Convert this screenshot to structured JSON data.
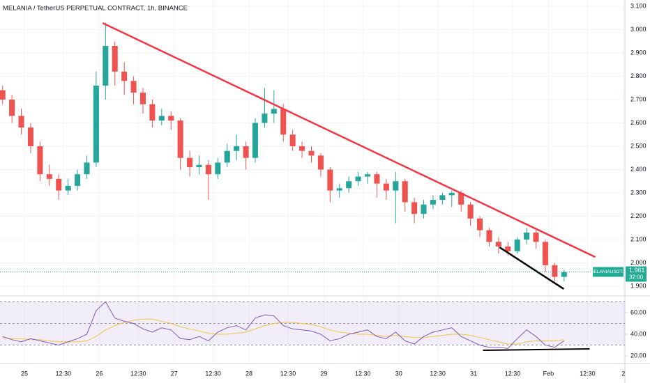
{
  "chart_data": {
    "type": "candlestick",
    "title": "MELANIA / TetherUS PERPETUAL CONTRACT, 1h, BINANCE",
    "up_color": "#26a69a",
    "down_color": "#ef5350",
    "x": [
      -7,
      -4,
      -1,
      2,
      5,
      8,
      11,
      14,
      17,
      20,
      23,
      26,
      29,
      32,
      35,
      38,
      41,
      44,
      47,
      50,
      53,
      56,
      59,
      62,
      65,
      68,
      71,
      74,
      77,
      80,
      83,
      86,
      89,
      92,
      95,
      98,
      101,
      104,
      107,
      110,
      113,
      116,
      119,
      122,
      125,
      128,
      131,
      134,
      137,
      140,
      143,
      146,
      149,
      152,
      155,
      158,
      161,
      164,
      167,
      170,
      173
    ],
    "ohlc": [
      [
        2.74,
        2.76,
        2.68,
        2.7
      ],
      [
        2.7,
        2.72,
        2.6,
        2.63
      ],
      [
        2.63,
        2.66,
        2.55,
        2.58
      ],
      [
        2.58,
        2.6,
        2.47,
        2.5
      ],
      [
        2.5,
        2.52,
        2.35,
        2.38
      ],
      [
        2.38,
        2.42,
        2.33,
        2.36
      ],
      [
        2.36,
        2.38,
        2.27,
        2.31
      ],
      [
        2.31,
        2.36,
        2.29,
        2.33
      ],
      [
        2.33,
        2.4,
        2.31,
        2.38
      ],
      [
        2.38,
        2.46,
        2.36,
        2.43
      ],
      [
        2.43,
        2.82,
        2.41,
        2.76
      ],
      [
        2.76,
        3.03,
        2.7,
        2.93
      ],
      [
        2.93,
        2.95,
        2.76,
        2.82
      ],
      [
        2.82,
        2.86,
        2.72,
        2.78
      ],
      [
        2.78,
        2.8,
        2.68,
        2.73
      ],
      [
        2.73,
        2.75,
        2.64,
        2.68
      ],
      [
        2.68,
        2.7,
        2.58,
        2.61
      ],
      [
        2.61,
        2.66,
        2.59,
        2.63
      ],
      [
        2.63,
        2.65,
        2.57,
        2.61
      ],
      [
        2.61,
        2.62,
        2.4,
        2.45
      ],
      [
        2.45,
        2.48,
        2.37,
        2.41
      ],
      [
        2.41,
        2.46,
        2.38,
        2.42
      ],
      [
        2.42,
        2.44,
        2.27,
        2.38
      ],
      [
        2.38,
        2.45,
        2.36,
        2.43
      ],
      [
        2.43,
        2.51,
        2.41,
        2.48
      ],
      [
        2.48,
        2.55,
        2.44,
        2.5
      ],
      [
        2.5,
        2.52,
        2.4,
        2.45
      ],
      [
        2.45,
        2.62,
        2.43,
        2.6
      ],
      [
        2.6,
        2.75,
        2.58,
        2.64
      ],
      [
        2.64,
        2.74,
        2.6,
        2.66
      ],
      [
        2.66,
        2.68,
        2.52,
        2.55
      ],
      [
        2.55,
        2.57,
        2.48,
        2.5
      ],
      [
        2.5,
        2.52,
        2.45,
        2.48
      ],
      [
        2.48,
        2.5,
        2.43,
        2.46
      ],
      [
        2.46,
        2.47,
        2.37,
        2.4
      ],
      [
        2.4,
        2.41,
        2.26,
        2.31
      ],
      [
        2.31,
        2.34,
        2.28,
        2.32
      ],
      [
        2.32,
        2.37,
        2.3,
        2.35
      ],
      [
        2.35,
        2.39,
        2.33,
        2.37
      ],
      [
        2.37,
        2.39,
        2.34,
        2.38
      ],
      [
        2.38,
        2.39,
        2.28,
        2.34
      ],
      [
        2.34,
        2.36,
        2.27,
        2.31
      ],
      [
        2.31,
        2.39,
        2.17,
        2.35
      ],
      [
        2.35,
        2.36,
        2.22,
        2.26
      ],
      [
        2.26,
        2.28,
        2.17,
        2.21
      ],
      [
        2.21,
        2.27,
        2.19,
        2.25
      ],
      [
        2.25,
        2.29,
        2.23,
        2.27
      ],
      [
        2.27,
        2.3,
        2.25,
        2.29
      ],
      [
        2.29,
        2.31,
        2.24,
        2.3
      ],
      [
        2.3,
        2.31,
        2.22,
        2.25
      ],
      [
        2.25,
        2.26,
        2.16,
        2.19
      ],
      [
        2.19,
        2.2,
        2.11,
        2.14
      ],
      [
        2.14,
        2.15,
        2.07,
        2.09
      ],
      [
        2.09,
        2.11,
        2.04,
        2.07
      ],
      [
        2.07,
        2.09,
        2.03,
        2.05
      ],
      [
        2.05,
        2.11,
        2.04,
        2.1
      ],
      [
        2.1,
        2.15,
        2.08,
        2.13
      ],
      [
        2.13,
        2.14,
        2.06,
        2.09
      ],
      [
        2.09,
        2.1,
        1.96,
        1.99
      ],
      [
        1.99,
        2.0,
        1.92,
        1.94
      ],
      [
        1.94,
        1.97,
        1.92,
        1.96
      ]
    ],
    "xlim": [
      -7.83,
      192.5
    ],
    "xticks": [
      {
        "value": 0,
        "label": "25"
      },
      {
        "value": 12.5,
        "label": "12:30"
      },
      {
        "value": 24,
        "label": "26"
      },
      {
        "value": 36.5,
        "label": "12:30"
      },
      {
        "value": 48,
        "label": "27"
      },
      {
        "value": 60.5,
        "label": "12:30"
      },
      {
        "value": 72,
        "label": "28"
      },
      {
        "value": 84.5,
        "label": "12:30"
      },
      {
        "value": 96,
        "label": "29"
      },
      {
        "value": 108.5,
        "label": "12:30"
      },
      {
        "value": 120,
        "label": "30"
      },
      {
        "value": 132.5,
        "label": "12:30"
      },
      {
        "value": 144,
        "label": "31"
      },
      {
        "value": 156.5,
        "label": "12:30"
      },
      {
        "value": 168,
        "label": "Feb"
      },
      {
        "value": 180.5,
        "label": "12:30"
      },
      {
        "value": 192,
        "label": "2"
      }
    ],
    "ylim": [
      1.873,
      3.127
    ],
    "yticks": [
      {
        "value": 3.1,
        "label": "3.100"
      },
      {
        "value": 3.0,
        "label": "3.000"
      },
      {
        "value": 2.9,
        "label": "2.900"
      },
      {
        "value": 2.8,
        "label": "2.800"
      },
      {
        "value": 2.7,
        "label": "2.700"
      },
      {
        "value": 2.6,
        "label": "2.600"
      },
      {
        "value": 2.5,
        "label": "2.500"
      },
      {
        "value": 2.4,
        "label": "2.400"
      },
      {
        "value": 2.3,
        "label": "2.300"
      },
      {
        "value": 2.2,
        "label": "2.200"
      },
      {
        "value": 2.1,
        "label": "2.100"
      },
      {
        "value": 2.0,
        "label": "2.000"
      },
      {
        "value": 1.9,
        "label": "1.900"
      }
    ],
    "grid": true,
    "symbol_label": "MELANIAUSDT.P",
    "last_price": 1.961,
    "countdown": "32:00",
    "last_color": "#22ab94",
    "trendlines": [
      {
        "color": "#f23645",
        "x": [
          25.1,
          183
        ],
        "y": [
          3.028,
          2.025
        ]
      },
      {
        "color": "#000000",
        "x": [
          152.3,
          172.9
        ],
        "y": [
          2.067,
          1.888
        ]
      }
    ],
    "rsi": {
      "color": "#7e57c2",
      "ma_color": "#f5c242",
      "ylim": [
        13,
        73.5
      ],
      "yticks": [
        {
          "value": 60,
          "label": "60.00"
        },
        {
          "value": 40,
          "label": "40.00"
        },
        {
          "value": 20,
          "label": "20.00"
        }
      ],
      "levels": [
        70,
        50,
        30
      ],
      "values": [
        38,
        35,
        33,
        36,
        34,
        32,
        30,
        33,
        36,
        40,
        62,
        70,
        55,
        52,
        50,
        45,
        42,
        46,
        44,
        36,
        35,
        38,
        34,
        42,
        46,
        48,
        44,
        55,
        58,
        57,
        48,
        45,
        44,
        43,
        40,
        34,
        36,
        40,
        42,
        44,
        38,
        36,
        42,
        34,
        31,
        38,
        42,
        44,
        46,
        38,
        34,
        30,
        28,
        28,
        27,
        36,
        44,
        38,
        30,
        28,
        34
      ],
      "ma": [
        37,
        36,
        36,
        35,
        35,
        34,
        33,
        33,
        33,
        34,
        38,
        44,
        48,
        51,
        53,
        54,
        54,
        52,
        50,
        47,
        45,
        43,
        41,
        40,
        40,
        41,
        42,
        45,
        48,
        50,
        51,
        51,
        50,
        49,
        47,
        44,
        42,
        41,
        40,
        40,
        39,
        38,
        39,
        38,
        37,
        37,
        38,
        39,
        40,
        40,
        39,
        37,
        35,
        33,
        31,
        31,
        33,
        34,
        34,
        34,
        35
      ],
      "trendlines": [
        {
          "color": "#000000",
          "x": [
            147,
            181.2
          ],
          "y": [
            25.2,
            26.5
          ]
        }
      ]
    }
  }
}
